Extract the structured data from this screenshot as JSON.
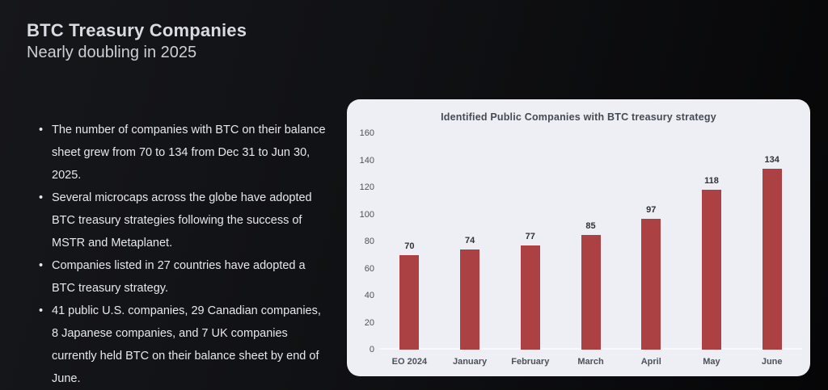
{
  "header": {
    "title": "BTC Treasury Companies",
    "subtitle": "Nearly doubling in 2025"
  },
  "bullets": [
    "The number of companies with BTC on their balance sheet grew from 70 to 134 from Dec 31 to Jun 30, 2025.",
    "Several microcaps across the globe have adopted BTC treasury strategies following the success of MSTR and Metaplanet.",
    "Companies listed in 27 countries have adopted a BTC treasury strategy.",
    "41 public U.S. companies, 29 Canadian companies, 8 Japanese companies, and 7 UK companies currently held BTC on their balance sheet by end of June."
  ],
  "colors": {
    "background": "#101114",
    "panel": "#edeff5",
    "bar": "#ab4142",
    "heading_text": "#d9dae2",
    "body_text": "#e7e8eb"
  },
  "chart_data": {
    "type": "bar",
    "title": "Identified Public Companies with BTC treasury strategy",
    "categories": [
      "EO 2024",
      "January",
      "February",
      "March",
      "April",
      "May",
      "June"
    ],
    "values": [
      70,
      74,
      77,
      85,
      97,
      118,
      134
    ],
    "xlabel": "",
    "ylabel": "",
    "ylim": [
      0,
      160
    ],
    "yticks": [
      0,
      20,
      40,
      60,
      80,
      100,
      120,
      140,
      160
    ],
    "grid": false,
    "legend_position": "none"
  }
}
